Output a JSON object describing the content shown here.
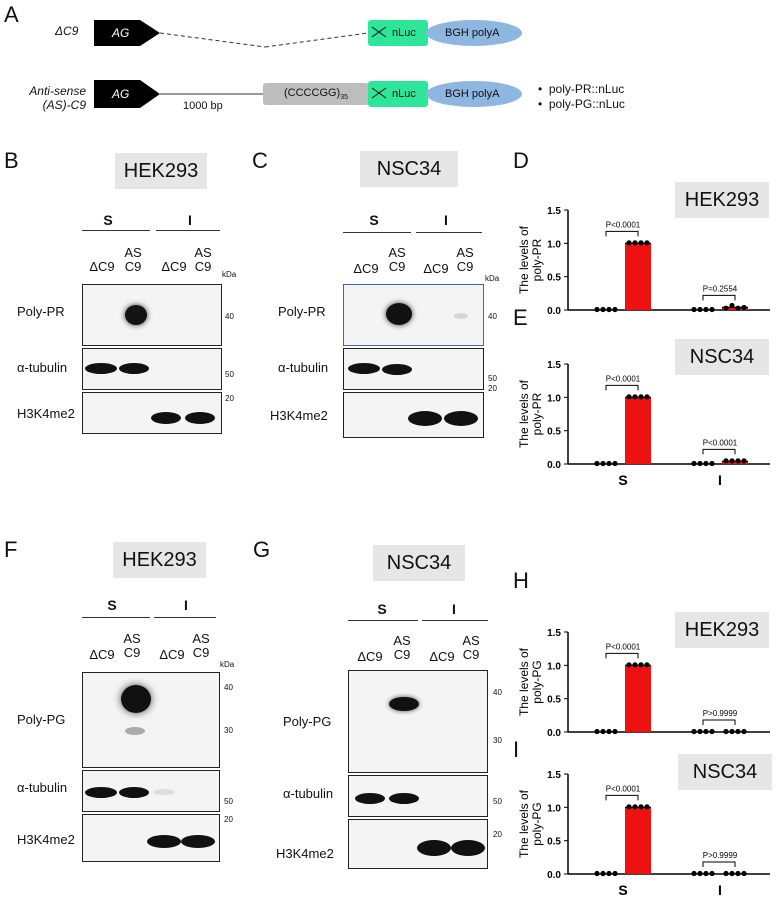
{
  "panel_labels": {
    "A": "A",
    "B": "B",
    "C": "C",
    "D": "D",
    "E": "E",
    "F": "F",
    "G": "G",
    "H": "H",
    "I": "I"
  },
  "schematic": {
    "row1_name": "ΔC9",
    "row2_name_line1": "Anti-sense",
    "row2_name_line2": "(AS)-C9",
    "promoter": "AG",
    "nluc": "nLuc",
    "polya": "BGH polyA",
    "repeat": "(CCCCGG)",
    "repeat_subscript": "35",
    "length": "1000 bp",
    "products": [
      "poly-PR::nLuc",
      "poly-PG::nLuc"
    ],
    "bullet": "•"
  },
  "blots": {
    "B": {
      "cell": "HEK293",
      "groups": [
        "S",
        "I"
      ],
      "lanes": [
        "ΔC9",
        "AS\nC9",
        "ΔC9",
        "AS\nC9"
      ],
      "kda": "kDa",
      "rows": [
        {
          "label": "Poly-PR",
          "mw": [
            "40"
          ]
        },
        {
          "label": "α-tubulin",
          "mw": [
            "50"
          ]
        },
        {
          "label": "H3K4me2",
          "mw": [
            "20"
          ]
        }
      ]
    },
    "C": {
      "cell": "NSC34",
      "groups": [
        "S",
        "I"
      ],
      "lanes": [
        "ΔC9",
        "AS\nC9",
        "ΔC9",
        "AS\nC9"
      ],
      "kda": "kDa",
      "rows": [
        {
          "label": "Poly-PR",
          "mw": [
            "40"
          ]
        },
        {
          "label": "α-tubulin",
          "mw": [
            "50"
          ]
        },
        {
          "label": "H3K4me2",
          "mw": [
            "20"
          ]
        }
      ]
    },
    "F": {
      "cell": "HEK293",
      "groups": [
        "S",
        "I"
      ],
      "lanes": [
        "ΔC9",
        "AS\nC9",
        "ΔC9",
        "AS\nC9"
      ],
      "kda": "kDa",
      "rows": [
        {
          "label": "Poly-PG",
          "mw": [
            "40",
            "30"
          ]
        },
        {
          "label": "α-tubulin",
          "mw": [
            "50"
          ]
        },
        {
          "label": "H3K4me2",
          "mw": [
            "20"
          ]
        }
      ]
    },
    "G": {
      "cell": "NSC34",
      "groups": [
        "S",
        "I"
      ],
      "lanes": [
        "ΔC9",
        "AS\nC9",
        "ΔC9",
        "AS\nC9"
      ],
      "kda": "kDa",
      "rows": [
        {
          "label": "Poly-PG",
          "mw": [
            "40",
            "30"
          ]
        },
        {
          "label": "α-tubulin",
          "mw": [
            "50"
          ]
        },
        {
          "label": "H3K4me2",
          "mw": [
            "20"
          ]
        }
      ]
    }
  },
  "chart_data": [
    {
      "panel": "D",
      "type": "bar",
      "cell": "HEK293",
      "ylabel": "The levels of\npoly-PR",
      "ylim": [
        0,
        1.5
      ],
      "yticks": [
        "0.0",
        "0.5",
        "1.0",
        "1.5"
      ],
      "categories": [
        "S",
        "I"
      ],
      "show_xlabels": false,
      "groups": [
        {
          "bars": [
            {
              "value": 0,
              "points": [
                0,
                0,
                0,
                0
              ]
            },
            {
              "value": 1.0,
              "points": [
                1,
                1,
                1,
                1
              ]
            }
          ],
          "pvalue": "P<0.0001"
        },
        {
          "bars": [
            {
              "value": 0,
              "points": [
                0,
                0,
                0,
                0
              ]
            },
            {
              "value": 0.04,
              "points": [
                0.02,
                0.06,
                0.02,
                0.03
              ]
            }
          ],
          "pvalue": "P=0.2554"
        }
      ]
    },
    {
      "panel": "E",
      "type": "bar",
      "cell": "NSC34",
      "ylabel": "The levels of\npoly-PR",
      "ylim": [
        0,
        1.5
      ],
      "yticks": [
        "0.0",
        "0.5",
        "1.0",
        "1.5"
      ],
      "categories": [
        "S",
        "I"
      ],
      "show_xlabels": true,
      "groups": [
        {
          "bars": [
            {
              "value": 0,
              "points": [
                0,
                0,
                0,
                0
              ]
            },
            {
              "value": 1.0,
              "points": [
                1,
                1,
                1,
                1
              ]
            }
          ],
          "pvalue": "P<0.0001"
        },
        {
          "bars": [
            {
              "value": 0,
              "points": [
                0,
                0,
                0,
                0
              ]
            },
            {
              "value": 0.04,
              "points": [
                0.04,
                0.04,
                0.04,
                0.04
              ]
            }
          ],
          "pvalue": "P<0.0001"
        }
      ]
    },
    {
      "panel": "H",
      "type": "bar",
      "cell": "HEK293",
      "ylabel": "The levels of\npoly-PG",
      "ylim": [
        0,
        1.5
      ],
      "yticks": [
        "0.0",
        "0.5",
        "1.0",
        "1.5"
      ],
      "categories": [
        "S",
        "I"
      ],
      "show_xlabels": false,
      "groups": [
        {
          "bars": [
            {
              "value": 0,
              "points": [
                0,
                0,
                0,
                0
              ]
            },
            {
              "value": 1.0,
              "points": [
                1,
                1,
                1,
                1
              ]
            }
          ],
          "pvalue": "P<0.0001"
        },
        {
          "bars": [
            {
              "value": 0,
              "points": [
                0,
                0,
                0,
                0
              ]
            },
            {
              "value": 0,
              "points": [
                0,
                0,
                0,
                0
              ]
            }
          ],
          "pvalue": "P>0.9999"
        }
      ]
    },
    {
      "panel": "I",
      "type": "bar",
      "cell": "NSC34",
      "ylabel": "The levels of\npoly-PG",
      "ylim": [
        0,
        1.5
      ],
      "yticks": [
        "0.0",
        "0.5",
        "1.0",
        "1.5"
      ],
      "categories": [
        "S",
        "I"
      ],
      "show_xlabels": true,
      "groups": [
        {
          "bars": [
            {
              "value": 0,
              "points": [
                0,
                0,
                0,
                0
              ]
            },
            {
              "value": 1.0,
              "points": [
                1,
                1,
                1,
                1
              ]
            }
          ],
          "pvalue": "P<0.0001"
        },
        {
          "bars": [
            {
              "value": 0,
              "points": [
                0,
                0,
                0,
                0
              ]
            },
            {
              "value": 0,
              "points": [
                0,
                0,
                0,
                0
              ]
            }
          ],
          "pvalue": "P>0.9999"
        }
      ]
    }
  ],
  "colors": {
    "bar": "#ee1111",
    "nluc": "#2ee59a",
    "polya": "#8db6e0",
    "repeat": "#bdbdbd",
    "cellbox": "#e6e6e6"
  }
}
